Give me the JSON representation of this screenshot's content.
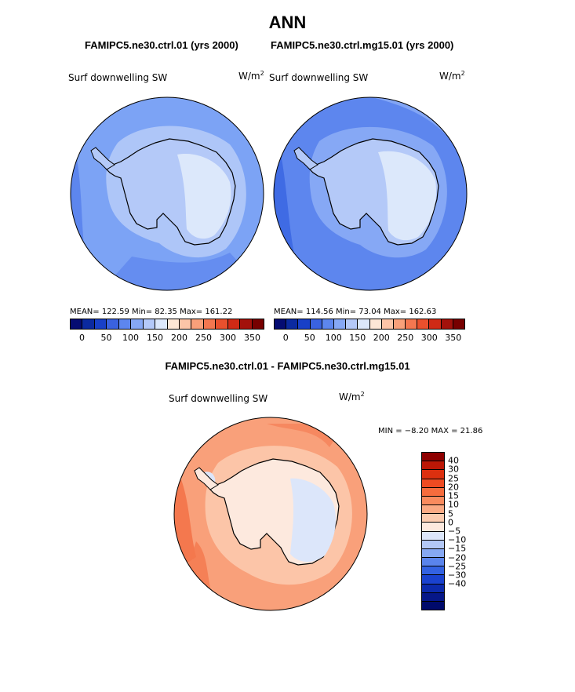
{
  "title": "ANN",
  "panels": [
    {
      "case_title": "FAMIPC5.ne30.ctrl.01 (yrs 2000)",
      "variable": "Surf downwelling SW",
      "units_base": "W/m",
      "units_exp": "2",
      "stats": "MEAN= 122.59   Min=   82.35   Max= 161.22",
      "mean": 122.59,
      "min": 82.35,
      "max": 161.22
    },
    {
      "case_title": "FAMIPC5.ne30.ctrl.mg15.01 (yrs 2000)",
      "variable": "Surf downwelling SW",
      "units_base": "W/m",
      "units_exp": "2",
      "stats": "MEAN= 114.56   Min=   73.04   Max= 162.63",
      "mean": 114.56,
      "min": 73.04,
      "max": 162.63
    }
  ],
  "diff": {
    "title": "FAMIPC5.ne30.ctrl.01 - FAMIPC5.ne30.ctrl.mg15.01",
    "variable": "Surf downwelling SW",
    "units_base": "W/m",
    "units_exp": "2",
    "minmax": "MIN =   −8.20  MAX =   21.86",
    "min": -8.2,
    "max": 21.86
  },
  "colorbar_abs": {
    "colors": [
      "#050c72",
      "#0b2aa0",
      "#1840c8",
      "#3a62e0",
      "#5d86ee",
      "#86a8f5",
      "#b4c9f8",
      "#dce8fb",
      "#fde6d6",
      "#fcc5a8",
      "#f9a07a",
      "#f47750",
      "#e9502d",
      "#cf2a16",
      "#a3110b",
      "#770000"
    ],
    "labels": [
      "0",
      "50",
      "100",
      "150",
      "200",
      "250",
      "300",
      "350"
    ]
  },
  "colorbar_diff": {
    "colors": [
      "#8e0000",
      "#bc1706",
      "#dc300f",
      "#ee4b22",
      "#f66c3d",
      "#f98b5e",
      "#fbaa84",
      "#fcccb0",
      "#fde9de",
      "#dce6fa",
      "#b3c8f6",
      "#86a8f3",
      "#5a84ec",
      "#3362e2",
      "#1a42cf",
      "#0c2aac",
      "#061788",
      "#000a6b"
    ],
    "labels": [
      "40",
      "30",
      "25",
      "20",
      "15",
      "10",
      "5",
      "0",
      "−5",
      "−10",
      "−15",
      "−20",
      "−25",
      "−30",
      "−40"
    ]
  },
  "map_colors": {
    "ocean_a": "#7ca3f5",
    "ocean_a_dark": "#5d86ee",
    "ring_a": "#aec6f8",
    "land_a": "#b4c9f8",
    "plateau_a": "#dce8fb",
    "ocean_b": "#5d86ee",
    "ocean_b_dark": "#3f6be4",
    "ring_b": "#86a8f5",
    "land_b": "#b4c9f8",
    "plateau_b": "#dce8fb",
    "diff_ocean": "#f9a07a",
    "diff_ocean_dark": "#f4784e",
    "diff_mid": "#fcc5a8",
    "diff_land": "#fde9de",
    "diff_neg": "#dce6fa"
  }
}
